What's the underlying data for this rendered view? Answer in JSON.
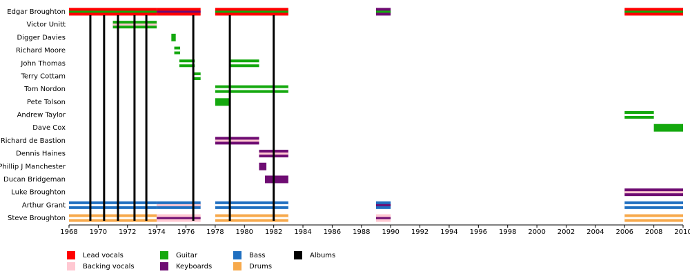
{
  "chart_data": {
    "type": "timeline",
    "xlim": [
      1968,
      2010
    ],
    "xticks": [
      1968,
      1970,
      1972,
      1974,
      1976,
      1978,
      1980,
      1982,
      1984,
      1986,
      1988,
      1990,
      1992,
      1994,
      1996,
      1998,
      2000,
      2002,
      2004,
      2006,
      2008,
      2010
    ],
    "roles": [
      {
        "name": "Lead vocals",
        "color": "#ff0000"
      },
      {
        "name": "Backing vocals",
        "color": "#ffc8d2"
      },
      {
        "name": "Guitar",
        "color": "#14a80e"
      },
      {
        "name": "Keyboards",
        "color": "#6e0c72"
      },
      {
        "name": "Bass",
        "color": "#1f6fc0"
      },
      {
        "name": "Drums",
        "color": "#f7a94b"
      },
      {
        "name": "Albums",
        "color": "#000000"
      }
    ],
    "members": [
      {
        "name": "Edgar Broughton",
        "segments": [
          {
            "start": 1968,
            "end": 1974,
            "color": "#ff0000",
            "inner_color": "#14a80e"
          },
          {
            "start": 1974,
            "end": 1977,
            "color": "#ff0000",
            "inner_color": "#6e0c72"
          },
          {
            "start": 1978,
            "end": 1983,
            "color": "#ff0000",
            "inner_color": "#14a80e"
          },
          {
            "start": 1989,
            "end": 1990,
            "color": "#6e0c72",
            "inner_color": "#14a80e"
          },
          {
            "start": 2006,
            "end": 2010,
            "color": "#ff0000",
            "inner_color": "#14a80e"
          }
        ]
      },
      {
        "name": "Victor Unitt",
        "segments": [
          {
            "start": 1971,
            "end": 1974,
            "color": "#14a80e",
            "inner_color": "#ffc8d2"
          }
        ]
      },
      {
        "name": "Digger Davies",
        "segments": [
          {
            "start": 1975,
            "end": 1975.3,
            "color": "#14a80e"
          }
        ]
      },
      {
        "name": "Richard Moore",
        "segments": [
          {
            "start": 1975.2,
            "end": 1975.6,
            "color": "#14a80e",
            "inner_color": "#ffffff"
          }
        ]
      },
      {
        "name": "John Thomas",
        "segments": [
          {
            "start": 1975.55,
            "end": 1976.6,
            "color": "#14a80e",
            "inner_color": "#ffffff"
          },
          {
            "start": 1979,
            "end": 1981,
            "color": "#14a80e",
            "inner_color": "#ffffff"
          }
        ]
      },
      {
        "name": "Terry Cottam",
        "segments": [
          {
            "start": 1976.5,
            "end": 1977,
            "color": "#14a80e",
            "inner_color": "#ffffff"
          }
        ]
      },
      {
        "name": "Tom Nordon",
        "segments": [
          {
            "start": 1978,
            "end": 1983,
            "color": "#14a80e",
            "inner_color": "#ffffff"
          }
        ]
      },
      {
        "name": "Pete Tolson",
        "segments": [
          {
            "start": 1978,
            "end": 1979,
            "color": "#14a80e"
          }
        ]
      },
      {
        "name": "Andrew Taylor",
        "segments": [
          {
            "start": 2006,
            "end": 2008,
            "color": "#14a80e",
            "inner_color": "#ffffff"
          }
        ]
      },
      {
        "name": "Dave Cox",
        "segments": [
          {
            "start": 2008,
            "end": 2010,
            "color": "#14a80e"
          }
        ]
      },
      {
        "name": "Richard de Bastion",
        "segments": [
          {
            "start": 1978,
            "end": 1981,
            "color": "#6e0c72",
            "inner_color": "#ffc8d2"
          }
        ]
      },
      {
        "name": "Dennis Haines",
        "segments": [
          {
            "start": 1981,
            "end": 1983,
            "color": "#6e0c72",
            "inner_color": "#ffc8d2"
          }
        ]
      },
      {
        "name": "Phillip J Manchester",
        "segments": [
          {
            "start": 1981,
            "end": 1981.5,
            "color": "#6e0c72"
          }
        ]
      },
      {
        "name": "Ducan Bridgeman",
        "segments": [
          {
            "start": 1981.4,
            "end": 1983,
            "color": "#6e0c72"
          }
        ]
      },
      {
        "name": "Luke Broughton",
        "segments": [
          {
            "start": 2006,
            "end": 2010,
            "color": "#6e0c72",
            "inner_color": "#ffc8d2"
          }
        ]
      },
      {
        "name": "Arthur Grant",
        "segments": [
          {
            "start": 1968,
            "end": 1974,
            "color": "#1f6fc0",
            "inner_color": "#ffffff"
          },
          {
            "start": 1974,
            "end": 1977,
            "color": "#1f6fc0",
            "inner_color": "#ffc8d2"
          },
          {
            "start": 1978,
            "end": 1983,
            "color": "#1f6fc0",
            "inner_color": "#ffffff"
          },
          {
            "start": 1989,
            "end": 1990,
            "color": "#1f6fc0",
            "inner_color": "#6e0c72"
          },
          {
            "start": 2006,
            "end": 2010,
            "color": "#1f6fc0",
            "inner_color": "#ffffff"
          }
        ]
      },
      {
        "name": "Steve Broughton",
        "segments": [
          {
            "start": 1968,
            "end": 1974,
            "color": "#f7a94b",
            "inner_color": "#ffffff"
          },
          {
            "start": 1974,
            "end": 1977,
            "color": "#ffc8d2",
            "inner_color": "#6e0c72"
          },
          {
            "start": 1978,
            "end": 1983,
            "color": "#f7a94b",
            "inner_color": "#ffffff"
          },
          {
            "start": 1989,
            "end": 1990,
            "color": "#ffc8d2",
            "inner_color": "#6e0c72"
          },
          {
            "start": 2006,
            "end": 2010,
            "color": "#f7a94b",
            "inner_color": "#ffffff"
          }
        ]
      }
    ],
    "albums": [
      1969.46,
      1970.4,
      1971.35,
      1972.48,
      1973.29,
      1976.5,
      1979,
      1982
    ]
  }
}
